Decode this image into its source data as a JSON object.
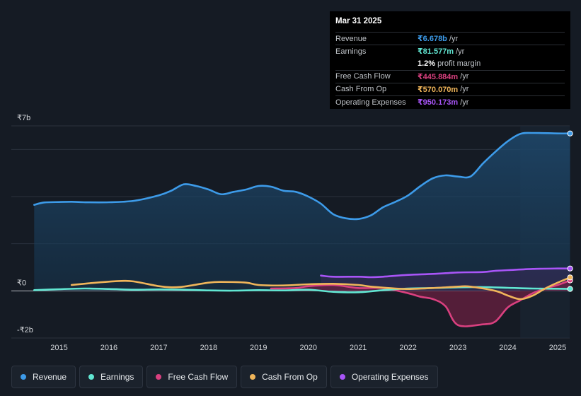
{
  "tooltip": {
    "date": "Mar 31 2025",
    "rows": [
      {
        "label": "Revenue",
        "value": "₹6.678b",
        "unit": "/yr",
        "color": "#3d9be9"
      },
      {
        "label": "Earnings",
        "value": "₹81.577m",
        "unit": "/yr",
        "color": "#61e6d2"
      },
      {
        "label": "",
        "value": "1.2%",
        "unit": "profit margin",
        "color": "#ffffff"
      },
      {
        "label": "Free Cash Flow",
        "value": "₹445.884m",
        "unit": "/yr",
        "color": "#d9407f"
      },
      {
        "label": "Cash From Op",
        "value": "₹570.070m",
        "unit": "/yr",
        "color": "#f0b55a"
      },
      {
        "label": "Operating Expenses",
        "value": "₹950.173m",
        "unit": "/yr",
        "color": "#a855f7"
      }
    ]
  },
  "legend": [
    {
      "label": "Revenue",
      "color": "#3d9be9"
    },
    {
      "label": "Earnings",
      "color": "#61e6d2"
    },
    {
      "label": "Free Cash Flow",
      "color": "#d9407f"
    },
    {
      "label": "Cash From Op",
      "color": "#f0b55a"
    },
    {
      "label": "Operating Expenses",
      "color": "#a855f7"
    }
  ],
  "chart_data": {
    "type": "area",
    "title": "",
    "units": "INR billions",
    "ylim": [
      -2,
      7
    ],
    "y_tick_labels": [
      "₹7b",
      "₹0",
      "-₹2b"
    ],
    "y_ticks": [
      7,
      0,
      -2
    ],
    "x_tick_labels": [
      "2015",
      "2016",
      "2017",
      "2018",
      "2019",
      "2020",
      "2021",
      "2022",
      "2023",
      "2024",
      "2025"
    ],
    "x_ticks": [
      2015,
      2016,
      2017,
      2018,
      2019,
      2020,
      2021,
      2022,
      2023,
      2024,
      2025
    ],
    "xlim": [
      2014.43,
      2025.25
    ],
    "forecast_shade_start": 2024.25,
    "series": [
      {
        "name": "Revenue",
        "color": "#3d9be9",
        "fill": true,
        "points": [
          [
            2014.5,
            3.65
          ],
          [
            2014.7,
            3.75
          ],
          [
            2015,
            3.77
          ],
          [
            2015.25,
            3.78
          ],
          [
            2015.5,
            3.76
          ],
          [
            2016,
            3.76
          ],
          [
            2016.5,
            3.82
          ],
          [
            2017,
            4.05
          ],
          [
            2017.25,
            4.25
          ],
          [
            2017.5,
            4.52
          ],
          [
            2017.75,
            4.45
          ],
          [
            2018,
            4.3
          ],
          [
            2018.25,
            4.1
          ],
          [
            2018.5,
            4.2
          ],
          [
            2018.75,
            4.3
          ],
          [
            2019,
            4.45
          ],
          [
            2019.25,
            4.42
          ],
          [
            2019.5,
            4.25
          ],
          [
            2019.75,
            4.2
          ],
          [
            2020,
            4.0
          ],
          [
            2020.25,
            3.7
          ],
          [
            2020.5,
            3.25
          ],
          [
            2020.75,
            3.08
          ],
          [
            2021,
            3.05
          ],
          [
            2021.25,
            3.2
          ],
          [
            2021.5,
            3.55
          ],
          [
            2021.75,
            3.78
          ],
          [
            2022,
            4.05
          ],
          [
            2022.25,
            4.45
          ],
          [
            2022.5,
            4.78
          ],
          [
            2022.75,
            4.9
          ],
          [
            2023,
            4.85
          ],
          [
            2023.25,
            4.85
          ],
          [
            2023.5,
            5.4
          ],
          [
            2023.75,
            5.9
          ],
          [
            2024,
            6.35
          ],
          [
            2024.25,
            6.66
          ],
          [
            2024.5,
            6.7
          ],
          [
            2025,
            6.68
          ],
          [
            2025.25,
            6.678
          ]
        ]
      },
      {
        "name": "Earnings",
        "color": "#61e6d2",
        "fill": false,
        "points": [
          [
            2014.5,
            0.03
          ],
          [
            2015,
            0.07
          ],
          [
            2015.5,
            0.1
          ],
          [
            2016,
            0.08
          ],
          [
            2016.5,
            0.05
          ],
          [
            2017,
            0.06
          ],
          [
            2017.5,
            0.05
          ],
          [
            2018,
            0.02
          ],
          [
            2018.5,
            0.01
          ],
          [
            2019,
            0.03
          ],
          [
            2019.5,
            0.02
          ],
          [
            2020,
            0.05
          ],
          [
            2020.5,
            -0.04
          ],
          [
            2021,
            -0.06
          ],
          [
            2021.5,
            0.03
          ],
          [
            2022,
            0.1
          ],
          [
            2022.5,
            0.12
          ],
          [
            2023,
            0.15
          ],
          [
            2023.5,
            0.16
          ],
          [
            2024,
            0.13
          ],
          [
            2024.5,
            0.1
          ],
          [
            2025,
            0.09
          ],
          [
            2025.25,
            0.082
          ]
        ]
      },
      {
        "name": "Free Cash Flow",
        "color": "#d9407f",
        "fill": true,
        "points": [
          [
            2019.25,
            0.1
          ],
          [
            2019.75,
            0.12
          ],
          [
            2020,
            0.2
          ],
          [
            2020.5,
            0.25
          ],
          [
            2021,
            0.12
          ],
          [
            2021.5,
            0.12
          ],
          [
            2022,
            -0.1
          ],
          [
            2022.25,
            -0.25
          ],
          [
            2022.5,
            -0.35
          ],
          [
            2022.75,
            -0.65
          ],
          [
            2023,
            -1.45
          ],
          [
            2023.5,
            -1.42
          ],
          [
            2023.75,
            -1.3
          ],
          [
            2024,
            -0.7
          ],
          [
            2024.25,
            -0.4
          ],
          [
            2024.5,
            -0.1
          ],
          [
            2024.75,
            0.1
          ],
          [
            2025,
            0.25
          ],
          [
            2025.25,
            0.446
          ]
        ]
      },
      {
        "name": "Cash From Op",
        "color": "#f0b55a",
        "fill": false,
        "points": [
          [
            2015.25,
            0.25
          ],
          [
            2015.75,
            0.35
          ],
          [
            2016.25,
            0.42
          ],
          [
            2016.5,
            0.4
          ],
          [
            2017,
            0.2
          ],
          [
            2017.25,
            0.15
          ],
          [
            2017.5,
            0.18
          ],
          [
            2018,
            0.35
          ],
          [
            2018.25,
            0.38
          ],
          [
            2018.75,
            0.35
          ],
          [
            2019,
            0.25
          ],
          [
            2019.5,
            0.23
          ],
          [
            2020,
            0.28
          ],
          [
            2020.5,
            0.3
          ],
          [
            2021,
            0.25
          ],
          [
            2021.25,
            0.18
          ],
          [
            2021.75,
            0.1
          ],
          [
            2022,
            0.08
          ],
          [
            2022.5,
            0.12
          ],
          [
            2023,
            0.18
          ],
          [
            2023.25,
            0.18
          ],
          [
            2023.75,
            0.0
          ],
          [
            2024,
            -0.2
          ],
          [
            2024.25,
            -0.35
          ],
          [
            2024.5,
            -0.2
          ],
          [
            2024.75,
            0.1
          ],
          [
            2025,
            0.35
          ],
          [
            2025.25,
            0.57
          ]
        ]
      },
      {
        "name": "Operating Expenses",
        "color": "#a855f7",
        "fill": true,
        "points": [
          [
            2020.25,
            0.65
          ],
          [
            2020.5,
            0.6
          ],
          [
            2021,
            0.6
          ],
          [
            2021.25,
            0.58
          ],
          [
            2021.5,
            0.6
          ],
          [
            2022,
            0.68
          ],
          [
            2022.5,
            0.72
          ],
          [
            2023,
            0.78
          ],
          [
            2023.5,
            0.8
          ],
          [
            2023.75,
            0.85
          ],
          [
            2024,
            0.88
          ],
          [
            2024.5,
            0.93
          ],
          [
            2025,
            0.95
          ],
          [
            2025.25,
            0.95
          ]
        ]
      }
    ]
  }
}
